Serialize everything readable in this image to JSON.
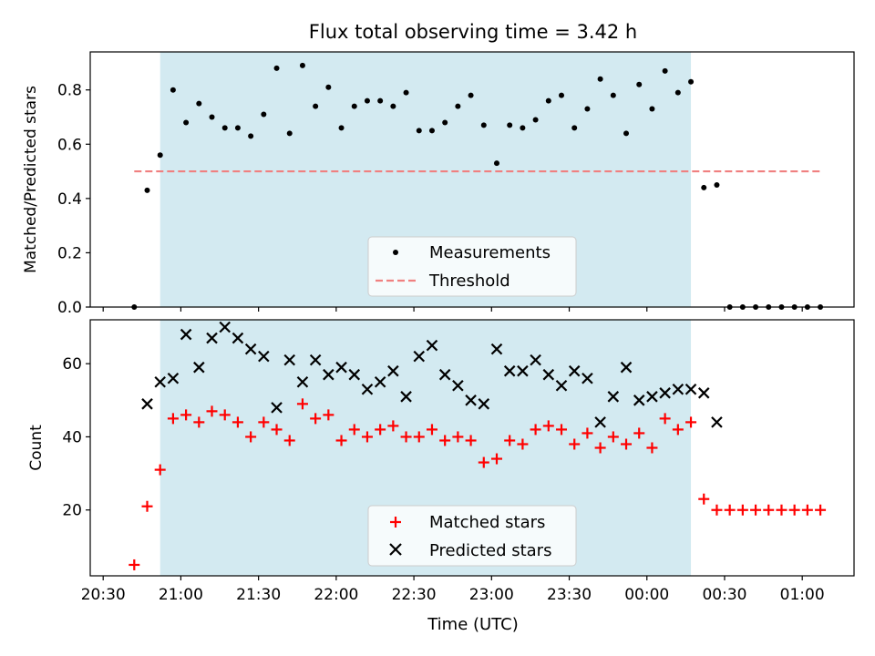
{
  "chart_data": [
    {
      "type": "scatter",
      "panel": "top",
      "title": "Flux total observing time = 3.42 h",
      "xlabel": "",
      "ylabel": "Matched/Predicted stars",
      "x_range_minutes": [
        -5,
        290
      ],
      "ylim": [
        0,
        0.94
      ],
      "yticks": [
        0.0,
        0.2,
        0.4,
        0.6,
        0.8
      ],
      "ytick_labels": [
        "0.0",
        "0.2",
        "0.4",
        "0.6",
        "0.8"
      ],
      "shaded_region": {
        "start": "20:52",
        "end": "00:17",
        "color": "#d3eaf1"
      },
      "legend": {
        "position": "lower-center",
        "entries": [
          "Measurements",
          "Threshold"
        ]
      },
      "threshold": {
        "name": "Threshold",
        "y": 0.5,
        "x_start": "20:42",
        "x_end": "01:07",
        "color": "#f08080"
      },
      "series": [
        {
          "name": "Measurements",
          "color": "#000000",
          "points": [
            {
              "t": "20:42",
              "y": 0.0
            },
            {
              "t": "20:47",
              "y": 0.43
            },
            {
              "t": "20:52",
              "y": 0.56
            },
            {
              "t": "20:57",
              "y": 0.8
            },
            {
              "t": "21:02",
              "y": 0.68
            },
            {
              "t": "21:07",
              "y": 0.75
            },
            {
              "t": "21:12",
              "y": 0.7
            },
            {
              "t": "21:17",
              "y": 0.66
            },
            {
              "t": "21:22",
              "y": 0.66
            },
            {
              "t": "21:27",
              "y": 0.63
            },
            {
              "t": "21:32",
              "y": 0.71
            },
            {
              "t": "21:37",
              "y": 0.88
            },
            {
              "t": "21:42",
              "y": 0.64
            },
            {
              "t": "21:47",
              "y": 0.89
            },
            {
              "t": "21:52",
              "y": 0.74
            },
            {
              "t": "21:57",
              "y": 0.81
            },
            {
              "t": "22:02",
              "y": 0.66
            },
            {
              "t": "22:07",
              "y": 0.74
            },
            {
              "t": "22:12",
              "y": 0.76
            },
            {
              "t": "22:17",
              "y": 0.76
            },
            {
              "t": "22:22",
              "y": 0.74
            },
            {
              "t": "22:27",
              "y": 0.79
            },
            {
              "t": "22:32",
              "y": 0.65
            },
            {
              "t": "22:37",
              "y": 0.65
            },
            {
              "t": "22:42",
              "y": 0.68
            },
            {
              "t": "22:47",
              "y": 0.74
            },
            {
              "t": "22:52",
              "y": 0.78
            },
            {
              "t": "22:57",
              "y": 0.67
            },
            {
              "t": "23:02",
              "y": 0.53
            },
            {
              "t": "23:07",
              "y": 0.67
            },
            {
              "t": "23:12",
              "y": 0.66
            },
            {
              "t": "23:17",
              "y": 0.69
            },
            {
              "t": "23:22",
              "y": 0.76
            },
            {
              "t": "23:27",
              "y": 0.78
            },
            {
              "t": "23:32",
              "y": 0.66
            },
            {
              "t": "23:37",
              "y": 0.73
            },
            {
              "t": "23:42",
              "y": 0.84
            },
            {
              "t": "23:47",
              "y": 0.78
            },
            {
              "t": "23:52",
              "y": 0.64
            },
            {
              "t": "23:57",
              "y": 0.82
            },
            {
              "t": "00:02",
              "y": 0.73
            },
            {
              "t": "00:07",
              "y": 0.87
            },
            {
              "t": "00:12",
              "y": 0.79
            },
            {
              "t": "00:17",
              "y": 0.83
            },
            {
              "t": "00:22",
              "y": 0.44
            },
            {
              "t": "00:27",
              "y": 0.45
            },
            {
              "t": "00:32",
              "y": 0.0
            },
            {
              "t": "00:37",
              "y": 0.0
            },
            {
              "t": "00:42",
              "y": 0.0
            },
            {
              "t": "00:47",
              "y": 0.0
            },
            {
              "t": "00:52",
              "y": 0.0
            },
            {
              "t": "00:57",
              "y": 0.0
            },
            {
              "t": "01:02",
              "y": 0.0
            },
            {
              "t": "01:07",
              "y": 0.0
            }
          ]
        }
      ]
    },
    {
      "type": "scatter",
      "panel": "bottom",
      "title": "",
      "xlabel": "Time (UTC)",
      "ylabel": "Count",
      "x_range_minutes": [
        -5,
        290
      ],
      "xticks": [
        "20:30",
        "21:00",
        "21:30",
        "22:00",
        "22:30",
        "23:00",
        "23:30",
        "00:00",
        "00:30",
        "01:00"
      ],
      "ylim": [
        2,
        72
      ],
      "yticks": [
        20,
        40,
        60
      ],
      "ytick_labels": [
        "20",
        "40",
        "60"
      ],
      "shaded_region": {
        "start": "20:52",
        "end": "00:17",
        "color": "#d3eaf1"
      },
      "legend": {
        "position": "lower-center",
        "entries": [
          "Matched stars",
          "Predicted stars"
        ]
      },
      "series": [
        {
          "name": "Matched stars",
          "marker": "plus",
          "color": "#ff0000",
          "points": [
            {
              "t": "20:42",
              "y": 5
            },
            {
              "t": "20:47",
              "y": 21
            },
            {
              "t": "20:52",
              "y": 31
            },
            {
              "t": "20:57",
              "y": 45
            },
            {
              "t": "21:02",
              "y": 46
            },
            {
              "t": "21:07",
              "y": 44
            },
            {
              "t": "21:12",
              "y": 47
            },
            {
              "t": "21:17",
              "y": 46
            },
            {
              "t": "21:22",
              "y": 44
            },
            {
              "t": "21:27",
              "y": 40
            },
            {
              "t": "21:32",
              "y": 44
            },
            {
              "t": "21:37",
              "y": 42
            },
            {
              "t": "21:42",
              "y": 39
            },
            {
              "t": "21:47",
              "y": 49
            },
            {
              "t": "21:52",
              "y": 45
            },
            {
              "t": "21:57",
              "y": 46
            },
            {
              "t": "22:02",
              "y": 39
            },
            {
              "t": "22:07",
              "y": 42
            },
            {
              "t": "22:12",
              "y": 40
            },
            {
              "t": "22:17",
              "y": 42
            },
            {
              "t": "22:22",
              "y": 43
            },
            {
              "t": "22:27",
              "y": 40
            },
            {
              "t": "22:32",
              "y": 40
            },
            {
              "t": "22:37",
              "y": 42
            },
            {
              "t": "22:42",
              "y": 39
            },
            {
              "t": "22:47",
              "y": 40
            },
            {
              "t": "22:52",
              "y": 39
            },
            {
              "t": "22:57",
              "y": 33
            },
            {
              "t": "23:02",
              "y": 34
            },
            {
              "t": "23:07",
              "y": 39
            },
            {
              "t": "23:12",
              "y": 38
            },
            {
              "t": "23:17",
              "y": 42
            },
            {
              "t": "23:22",
              "y": 43
            },
            {
              "t": "23:27",
              "y": 42
            },
            {
              "t": "23:32",
              "y": 38
            },
            {
              "t": "23:37",
              "y": 41
            },
            {
              "t": "23:42",
              "y": 37
            },
            {
              "t": "23:47",
              "y": 40
            },
            {
              "t": "23:52",
              "y": 38
            },
            {
              "t": "23:57",
              "y": 41
            },
            {
              "t": "00:02",
              "y": 37
            },
            {
              "t": "00:07",
              "y": 45
            },
            {
              "t": "00:12",
              "y": 42
            },
            {
              "t": "00:17",
              "y": 44
            },
            {
              "t": "00:22",
              "y": 23
            },
            {
              "t": "00:27",
              "y": 20
            },
            {
              "t": "00:32",
              "y": 20
            },
            {
              "t": "00:37",
              "y": 20
            },
            {
              "t": "00:42",
              "y": 20
            },
            {
              "t": "00:47",
              "y": 20
            },
            {
              "t": "00:52",
              "y": 20
            },
            {
              "t": "00:57",
              "y": 20
            },
            {
              "t": "01:02",
              "y": 20
            },
            {
              "t": "01:07",
              "y": 20
            }
          ]
        },
        {
          "name": "Predicted stars",
          "marker": "x",
          "color": "#000000",
          "points": [
            {
              "t": "20:47",
              "y": 49
            },
            {
              "t": "20:52",
              "y": 55
            },
            {
              "t": "20:57",
              "y": 56
            },
            {
              "t": "21:02",
              "y": 68
            },
            {
              "t": "21:07",
              "y": 59
            },
            {
              "t": "21:12",
              "y": 67
            },
            {
              "t": "21:17",
              "y": 70
            },
            {
              "t": "21:22",
              "y": 67
            },
            {
              "t": "21:27",
              "y": 64
            },
            {
              "t": "21:32",
              "y": 62
            },
            {
              "t": "21:37",
              "y": 48
            },
            {
              "t": "21:42",
              "y": 61
            },
            {
              "t": "21:47",
              "y": 55
            },
            {
              "t": "21:52",
              "y": 61
            },
            {
              "t": "21:57",
              "y": 57
            },
            {
              "t": "22:02",
              "y": 59
            },
            {
              "t": "22:07",
              "y": 57
            },
            {
              "t": "22:12",
              "y": 53
            },
            {
              "t": "22:17",
              "y": 55
            },
            {
              "t": "22:22",
              "y": 58
            },
            {
              "t": "22:27",
              "y": 51
            },
            {
              "t": "22:32",
              "y": 62
            },
            {
              "t": "22:37",
              "y": 65
            },
            {
              "t": "22:42",
              "y": 57
            },
            {
              "t": "22:47",
              "y": 54
            },
            {
              "t": "22:52",
              "y": 50
            },
            {
              "t": "22:57",
              "y": 49
            },
            {
              "t": "23:02",
              "y": 64
            },
            {
              "t": "23:07",
              "y": 58
            },
            {
              "t": "23:12",
              "y": 58
            },
            {
              "t": "23:17",
              "y": 61
            },
            {
              "t": "23:22",
              "y": 57
            },
            {
              "t": "23:27",
              "y": 54
            },
            {
              "t": "23:32",
              "y": 58
            },
            {
              "t": "23:37",
              "y": 56
            },
            {
              "t": "23:42",
              "y": 44
            },
            {
              "t": "23:47",
              "y": 51
            },
            {
              "t": "23:52",
              "y": 59
            },
            {
              "t": "23:57",
              "y": 50
            },
            {
              "t": "00:02",
              "y": 51
            },
            {
              "t": "00:07",
              "y": 52
            },
            {
              "t": "00:12",
              "y": 53
            },
            {
              "t": "00:17",
              "y": 53
            },
            {
              "t": "00:22",
              "y": 52
            },
            {
              "t": "00:27",
              "y": 44
            }
          ]
        }
      ]
    }
  ]
}
